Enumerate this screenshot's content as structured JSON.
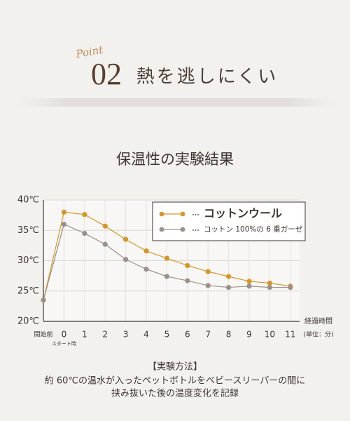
{
  "header": {
    "badge": "Point",
    "number": "02",
    "headline": "熱を逃しにくい"
  },
  "chart_data": {
    "type": "line",
    "title": "保温性の実験結果",
    "categories": [
      "開始前",
      "0",
      "1",
      "2",
      "3",
      "4",
      "5",
      "6",
      "7",
      "8",
      "9",
      "10",
      "11"
    ],
    "category_note": "スタート時",
    "x_label": "経過時間",
    "x_unit": "(単位：分)",
    "series": [
      {
        "name": "コットンウール",
        "color": "#d4962c",
        "values": [
          23.5,
          38,
          37.6,
          35.7,
          33.5,
          31.6,
          30.4,
          29.2,
          28.2,
          27.4,
          26.6,
          26.3,
          25.8
        ]
      },
      {
        "name": "コットン 100%の 6 重ガーゼ",
        "color": "#9b918a",
        "values": [
          23.5,
          36,
          34.5,
          32.7,
          30.2,
          28.6,
          27.4,
          26.7,
          25.9,
          25.6,
          25.8,
          25.6,
          25.6
        ]
      }
    ],
    "ylim": [
      20,
      40
    ],
    "yticks": [
      {
        "value": 20,
        "label": "20℃"
      },
      {
        "value": 25,
        "label": "25℃"
      },
      {
        "value": 30,
        "label": "30℃"
      },
      {
        "value": 35,
        "label": "35℃"
      },
      {
        "value": 40,
        "label": "40℃"
      }
    ],
    "grid": true,
    "legend": "top-right"
  },
  "notes": {
    "heading": "【実験方法】",
    "lines": [
      "約 60℃の温水が入ったペットボトルをベビースリーパーの間に",
      "挟み抜いた後の温度変化を記録"
    ]
  }
}
